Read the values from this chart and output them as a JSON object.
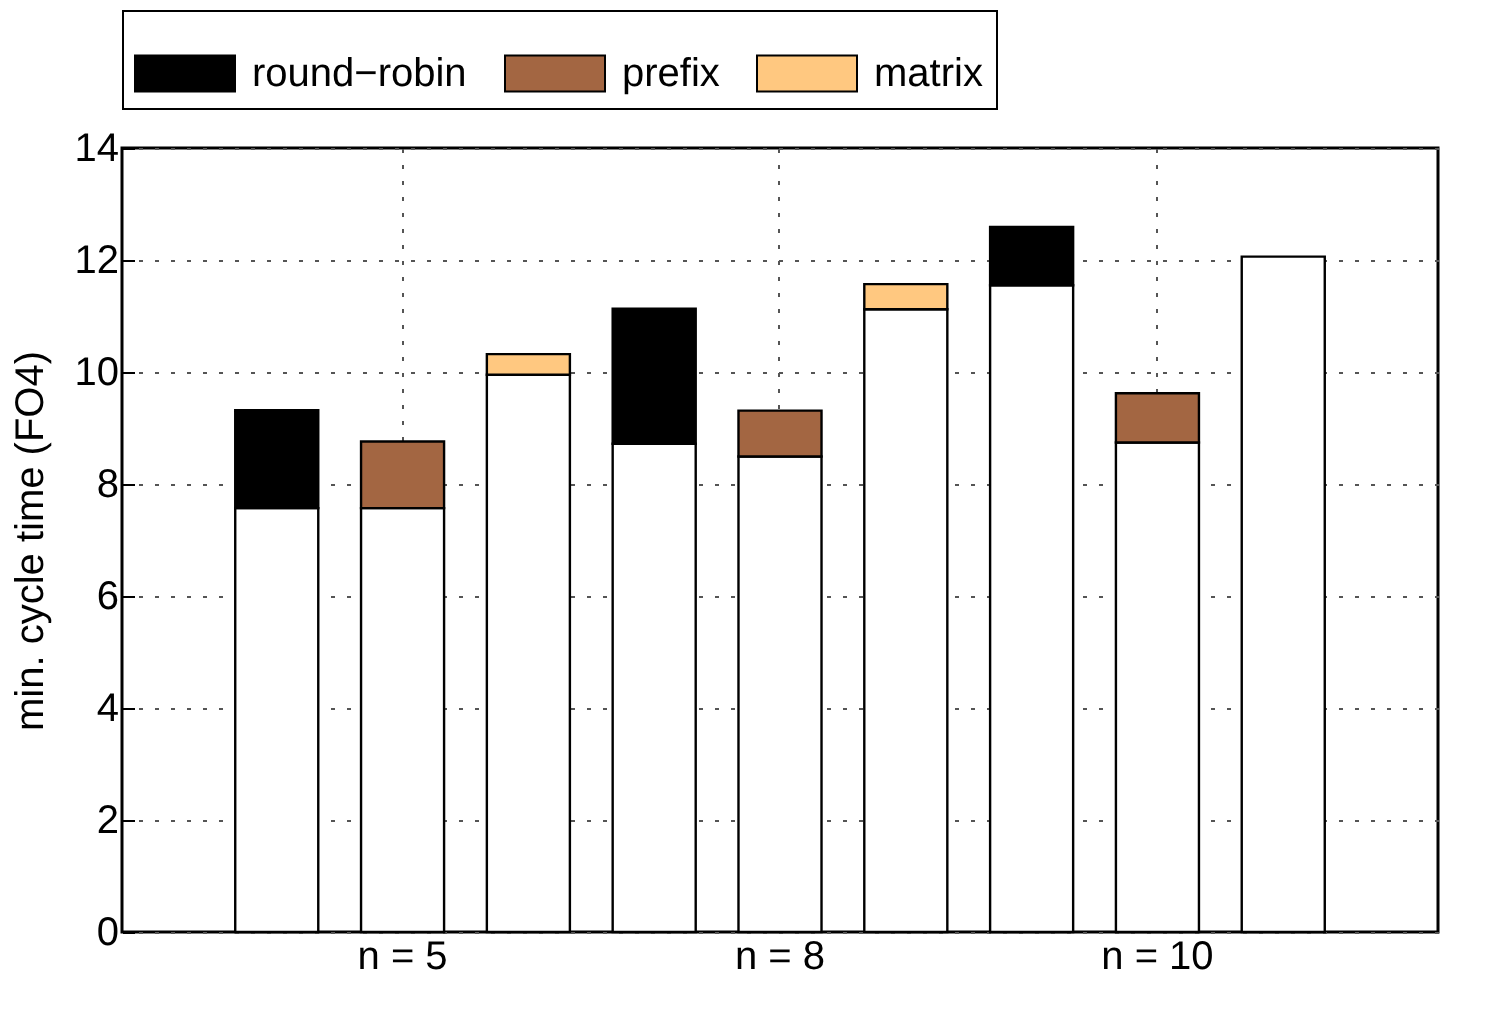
{
  "chart_data": {
    "type": "bar",
    "ylabel": "min. cycle time (FO4)",
    "stacked": true,
    "categories": [
      null,
      "n = 5",
      null,
      null,
      "n = 8",
      null,
      null,
      "n = 10",
      null
    ],
    "series": [
      {
        "color": "#ffffff",
        "values": [
          7.57,
          7.57,
          9.95,
          8.72,
          8.49,
          11.12,
          11.55,
          8.74,
          12.06
        ]
      },
      {
        "name": "round−robin",
        "color": "#000000",
        "values": [
          1.75,
          null,
          null,
          2.41,
          null,
          null,
          1.04,
          null,
          null
        ]
      },
      {
        "name": "prefix",
        "color": "#a36642",
        "values": [
          null,
          1.19,
          null,
          null,
          0.82,
          null,
          null,
          0.88,
          null
        ]
      },
      {
        "name": "matrix",
        "color": "#ffc880",
        "values": [
          null,
          null,
          0.37,
          null,
          null,
          0.45,
          null,
          null,
          null
        ]
      }
    ],
    "ylim": [
      0,
      14
    ],
    "yticks": [
      0,
      2,
      4,
      6,
      8,
      10,
      12,
      14
    ],
    "grid": true,
    "legend": "top"
  }
}
